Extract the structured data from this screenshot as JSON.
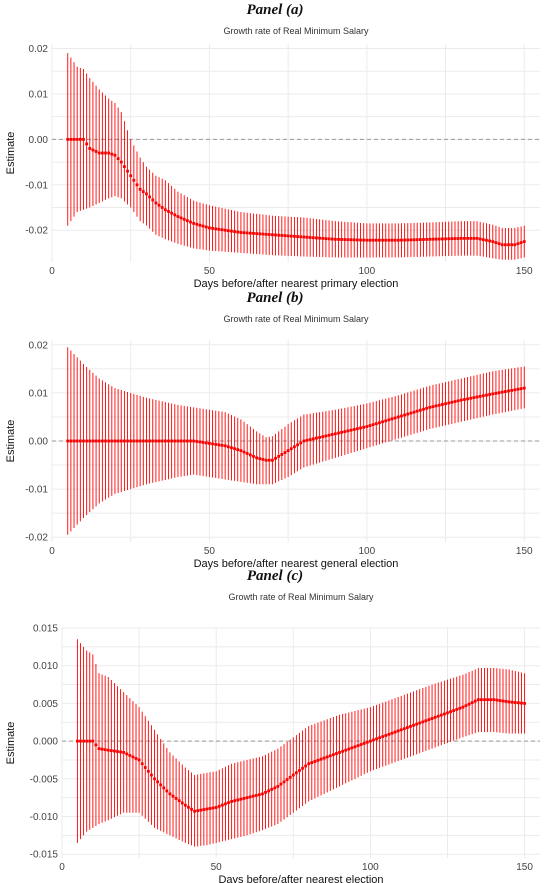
{
  "panels": [
    {
      "label": "Panel (a)"
    },
    {
      "label": "Panel (b)"
    },
    {
      "label": "Panel (c)"
    }
  ],
  "chart_data": [
    {
      "type": "line",
      "title": "Growth rate of Real Minimum Salary",
      "xlabel": "Days before/after nearest primary election",
      "ylabel": "Estimate",
      "xlim": [
        0,
        155
      ],
      "ylim": [
        -0.027,
        0.021
      ],
      "xticks": [
        0,
        50,
        100,
        150
      ],
      "yticks": [
        -0.02,
        -0.01,
        0.0,
        0.01,
        0.02
      ],
      "ytick_labels": [
        "-0.02",
        "-0.01",
        "0.00",
        "0.01",
        "0.02"
      ],
      "reference_line": 0,
      "grid": true,
      "series_color": "#ff0000",
      "x": [
        5,
        8,
        10,
        12,
        15,
        18,
        20,
        22,
        25,
        28,
        30,
        33,
        36,
        40,
        45,
        50,
        60,
        70,
        80,
        90,
        100,
        110,
        120,
        130,
        135,
        140,
        143,
        147,
        150
      ],
      "y": [
        0,
        0,
        0,
        -0.002,
        -0.003,
        -0.003,
        -0.0035,
        -0.005,
        -0.008,
        -0.011,
        -0.012,
        -0.014,
        -0.0155,
        -0.017,
        -0.0185,
        -0.0195,
        -0.0205,
        -0.021,
        -0.0215,
        -0.022,
        -0.0222,
        -0.0222,
        -0.022,
        -0.0218,
        -0.0218,
        -0.0225,
        -0.0232,
        -0.0232,
        -0.0225
      ],
      "lower": [
        -0.019,
        -0.016,
        -0.0155,
        -0.015,
        -0.014,
        -0.013,
        -0.0125,
        -0.013,
        -0.015,
        -0.018,
        -0.019,
        -0.021,
        -0.022,
        -0.023,
        -0.024,
        -0.0245,
        -0.025,
        -0.0255,
        -0.0258,
        -0.026,
        -0.026,
        -0.026,
        -0.0258,
        -0.0256,
        -0.0256,
        -0.0262,
        -0.0265,
        -0.0265,
        -0.026
      ],
      "upper": [
        0.019,
        0.016,
        0.0155,
        0.0135,
        0.011,
        0.009,
        0.008,
        0.006,
        0.0,
        -0.004,
        -0.006,
        -0.008,
        -0.009,
        -0.0115,
        -0.0135,
        -0.0145,
        -0.016,
        -0.0168,
        -0.0172,
        -0.018,
        -0.0185,
        -0.0185,
        -0.0183,
        -0.018,
        -0.018,
        -0.0188,
        -0.0195,
        -0.0195,
        -0.019
      ]
    },
    {
      "type": "line",
      "title": "Growth rate of Real Minimum Salary",
      "xlabel": "Days before/after nearest general election",
      "ylabel": "Estimate",
      "xlim": [
        0,
        155
      ],
      "ylim": [
        -0.021,
        0.021
      ],
      "xticks": [
        0,
        50,
        100,
        150
      ],
      "yticks": [
        -0.02,
        -0.01,
        0.0,
        0.01,
        0.02
      ],
      "ytick_labels": [
        "-0.02",
        "-0.01",
        "0.00",
        "0.01",
        "0.02"
      ],
      "reference_line": 0,
      "grid": true,
      "series_color": "#ff0000",
      "x": [
        5,
        10,
        15,
        20,
        30,
        40,
        45,
        50,
        55,
        60,
        65,
        68,
        70,
        75,
        80,
        90,
        100,
        110,
        120,
        130,
        140,
        150
      ],
      "y": [
        0,
        0,
        0,
        0,
        0,
        0,
        0,
        -0.0005,
        -0.001,
        -0.002,
        -0.0035,
        -0.004,
        -0.004,
        -0.002,
        0.0,
        0.0015,
        0.003,
        0.005,
        0.007,
        0.0085,
        0.0098,
        0.011
      ],
      "lower": [
        -0.0195,
        -0.016,
        -0.013,
        -0.011,
        -0.009,
        -0.0075,
        -0.007,
        -0.0075,
        -0.008,
        -0.0085,
        -0.009,
        -0.009,
        -0.009,
        -0.0075,
        -0.0055,
        -0.0035,
        -0.0015,
        0.0005,
        0.0025,
        0.004,
        0.0055,
        0.0068
      ],
      "upper": [
        0.0195,
        0.016,
        0.013,
        0.011,
        0.009,
        0.0075,
        0.007,
        0.0065,
        0.006,
        0.0045,
        0.002,
        0.0008,
        0.001,
        0.0035,
        0.0055,
        0.0065,
        0.0078,
        0.0095,
        0.0115,
        0.013,
        0.0145,
        0.0155
      ]
    },
    {
      "type": "line",
      "title": "Growth rate of Real Minimum Salary",
      "xlabel": "Days before/after nearest election",
      "ylabel": "Estimate",
      "xlim": [
        0,
        155
      ],
      "ylim": [
        -0.0155,
        0.015
      ],
      "xticks": [
        0,
        50,
        100,
        150
      ],
      "yticks": [
        -0.015,
        -0.01,
        -0.005,
        0.0,
        0.005,
        0.01,
        0.015
      ],
      "ytick_labels": [
        "-0.015",
        "-0.010",
        "-0.005",
        "0.000",
        "0.005",
        "0.010",
        "0.015"
      ],
      "reference_line": 0,
      "grid": true,
      "series_color": "#ff0000",
      "x": [
        5,
        8,
        10,
        12,
        15,
        20,
        25,
        30,
        35,
        40,
        43,
        47,
        50,
        55,
        60,
        65,
        70,
        75,
        80,
        90,
        100,
        110,
        120,
        130,
        135,
        140,
        145,
        150
      ],
      "y": [
        0,
        0,
        0,
        -0.001,
        -0.0012,
        -0.0015,
        -0.0025,
        -0.005,
        -0.007,
        -0.0085,
        -0.0093,
        -0.009,
        -0.0088,
        -0.008,
        -0.0075,
        -0.007,
        -0.006,
        -0.0045,
        -0.003,
        -0.0015,
        0.0,
        0.0015,
        0.003,
        0.0045,
        0.0055,
        0.0055,
        0.0052,
        0.005
      ],
      "lower": [
        -0.0135,
        -0.012,
        -0.0115,
        -0.011,
        -0.0105,
        -0.0095,
        -0.0095,
        -0.0115,
        -0.0125,
        -0.0135,
        -0.014,
        -0.0138,
        -0.0135,
        -0.013,
        -0.0125,
        -0.0118,
        -0.011,
        -0.0095,
        -0.008,
        -0.006,
        -0.004,
        -0.0025,
        -0.001,
        0.0005,
        0.0012,
        0.0012,
        0.001,
        0.001
      ],
      "upper": [
        0.0135,
        0.012,
        0.0115,
        0.009,
        0.0085,
        0.0065,
        0.0045,
        0.0015,
        -0.0015,
        -0.0035,
        -0.0045,
        -0.0042,
        -0.004,
        -0.003,
        -0.0025,
        -0.002,
        -0.001,
        0.0005,
        0.002,
        0.0035,
        0.0045,
        0.006,
        0.0075,
        0.0088,
        0.0097,
        0.0097,
        0.0095,
        0.009
      ]
    }
  ]
}
